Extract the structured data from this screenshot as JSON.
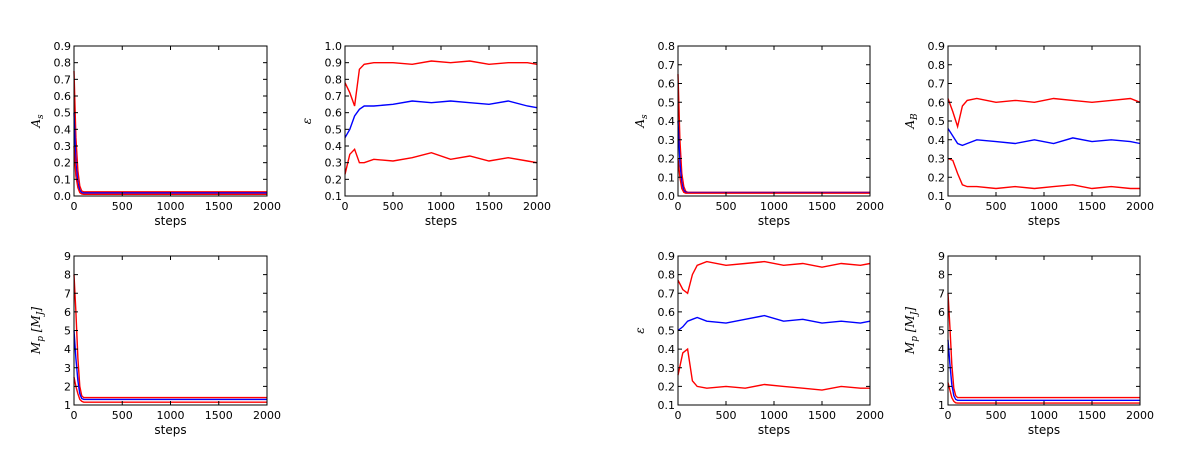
{
  "chart_data": [
    {
      "id": "a-As",
      "type": "line",
      "xlabel": "steps",
      "ylabel": "A_s",
      "xlim": [
        0,
        2000
      ],
      "ylim": [
        0,
        0.9
      ],
      "xticks": [
        "0",
        "500",
        "1000",
        "1500",
        "2000"
      ],
      "yticks": [
        "0.0",
        "0.1",
        "0.2",
        "0.3",
        "0.4",
        "0.5",
        "0.6",
        "0.7",
        "0.8",
        "0.9"
      ],
      "series": [
        {
          "color": "#ff0000",
          "x": [
            0,
            20,
            40,
            60,
            80,
            100,
            150,
            2000
          ],
          "y": [
            0.75,
            0.35,
            0.15,
            0.06,
            0.03,
            0.025,
            0.025,
            0.025
          ]
        },
        {
          "color": "#0000ff",
          "x": [
            0,
            20,
            40,
            60,
            80,
            100,
            150,
            2000
          ],
          "y": [
            0.5,
            0.2,
            0.08,
            0.035,
            0.02,
            0.018,
            0.018,
            0.018
          ]
        },
        {
          "color": "#ff0000",
          "x": [
            0,
            20,
            40,
            60,
            80,
            100,
            150,
            2000
          ],
          "y": [
            0.3,
            0.12,
            0.05,
            0.02,
            0.012,
            0.01,
            0.01,
            0.01
          ]
        }
      ]
    },
    {
      "id": "a-eps",
      "type": "line",
      "xlabel": "steps",
      "ylabel": "ε",
      "xlim": [
        0,
        2000
      ],
      "ylim": [
        0.1,
        1.0
      ],
      "xticks": [
        "0",
        "500",
        "1000",
        "1500",
        "2000"
      ],
      "yticks": [
        "0.1",
        "0.2",
        "0.3",
        "0.4",
        "0.5",
        "0.6",
        "0.7",
        "0.8",
        "0.9",
        "1.0"
      ],
      "series": [
        {
          "color": "#ff0000",
          "x": [
            0,
            50,
            100,
            150,
            200,
            300,
            500,
            700,
            900,
            1100,
            1300,
            1500,
            1700,
            1900,
            2000
          ],
          "y": [
            0.78,
            0.72,
            0.64,
            0.86,
            0.89,
            0.9,
            0.9,
            0.89,
            0.91,
            0.9,
            0.91,
            0.89,
            0.9,
            0.9,
            0.89
          ]
        },
        {
          "color": "#0000ff",
          "x": [
            0,
            50,
            100,
            150,
            200,
            300,
            500,
            700,
            900,
            1100,
            1300,
            1500,
            1700,
            1900,
            2000
          ],
          "y": [
            0.45,
            0.5,
            0.58,
            0.62,
            0.64,
            0.64,
            0.65,
            0.67,
            0.66,
            0.67,
            0.66,
            0.65,
            0.67,
            0.64,
            0.63
          ]
        },
        {
          "color": "#ff0000",
          "x": [
            0,
            50,
            100,
            150,
            200,
            300,
            500,
            700,
            900,
            1100,
            1300,
            1500,
            1700,
            1900,
            2000
          ],
          "y": [
            0.23,
            0.35,
            0.38,
            0.3,
            0.3,
            0.32,
            0.31,
            0.33,
            0.36,
            0.32,
            0.34,
            0.31,
            0.33,
            0.31,
            0.3
          ]
        }
      ]
    },
    {
      "id": "a-Mp",
      "type": "line",
      "xlabel": "steps",
      "ylabel": "M_p [M_J]",
      "xlim": [
        0,
        2000
      ],
      "ylim": [
        1,
        9
      ],
      "xticks": [
        "0",
        "500",
        "1000",
        "1500",
        "2000"
      ],
      "yticks": [
        "1",
        "2",
        "3",
        "4",
        "5",
        "6",
        "7",
        "8",
        "9"
      ],
      "series": [
        {
          "color": "#ff0000",
          "x": [
            0,
            20,
            40,
            60,
            80,
            100,
            150,
            2000
          ],
          "y": [
            8.0,
            6.0,
            3.5,
            2.0,
            1.5,
            1.4,
            1.4,
            1.4
          ]
        },
        {
          "color": "#0000ff",
          "x": [
            0,
            20,
            40,
            60,
            80,
            100,
            150,
            2000
          ],
          "y": [
            5.0,
            3.5,
            2.3,
            1.6,
            1.35,
            1.3,
            1.3,
            1.3
          ]
        },
        {
          "color": "#ff0000",
          "x": [
            0,
            20,
            40,
            60,
            80,
            100,
            150,
            2000
          ],
          "y": [
            2.5,
            2.0,
            1.6,
            1.3,
            1.2,
            1.15,
            1.15,
            1.15
          ]
        }
      ]
    },
    {
      "id": "b-As",
      "type": "line",
      "xlabel": "steps",
      "ylabel": "A_s",
      "xlim": [
        0,
        2000
      ],
      "ylim": [
        0,
        0.8
      ],
      "xticks": [
        "0",
        "500",
        "1000",
        "1500",
        "2000"
      ],
      "yticks": [
        "0.0",
        "0.1",
        "0.2",
        "0.3",
        "0.4",
        "0.5",
        "0.6",
        "0.7",
        "0.8"
      ],
      "series": [
        {
          "color": "#ff0000",
          "x": [
            0,
            20,
            40,
            60,
            80,
            100,
            150,
            2000
          ],
          "y": [
            0.65,
            0.3,
            0.12,
            0.05,
            0.025,
            0.02,
            0.02,
            0.02
          ]
        },
        {
          "color": "#0000ff",
          "x": [
            0,
            20,
            40,
            60,
            80,
            100,
            150,
            2000
          ],
          "y": [
            0.4,
            0.18,
            0.07,
            0.03,
            0.02,
            0.018,
            0.018,
            0.018
          ]
        },
        {
          "color": "#ff0000",
          "x": [
            0,
            20,
            40,
            60,
            80,
            100,
            150,
            2000
          ],
          "y": [
            0.2,
            0.1,
            0.04,
            0.02,
            0.015,
            0.015,
            0.015,
            0.015
          ]
        }
      ]
    },
    {
      "id": "b-AB",
      "type": "line",
      "xlabel": "steps",
      "ylabel": "A_B",
      "xlim": [
        0,
        2000
      ],
      "ylim": [
        0.1,
        0.9
      ],
      "xticks": [
        "0",
        "500",
        "1000",
        "1500",
        "2000"
      ],
      "yticks": [
        "0.1",
        "0.2",
        "0.3",
        "0.4",
        "0.5",
        "0.6",
        "0.7",
        "0.8",
        "0.9"
      ],
      "series": [
        {
          "color": "#ff0000",
          "x": [
            0,
            50,
            100,
            150,
            200,
            300,
            500,
            700,
            900,
            1100,
            1300,
            1500,
            1700,
            1900,
            2000
          ],
          "y": [
            0.62,
            0.55,
            0.47,
            0.58,
            0.61,
            0.62,
            0.6,
            0.61,
            0.6,
            0.62,
            0.61,
            0.6,
            0.61,
            0.62,
            0.6
          ]
        },
        {
          "color": "#0000ff",
          "x": [
            0,
            50,
            100,
            150,
            200,
            300,
            500,
            700,
            900,
            1100,
            1300,
            1500,
            1700,
            1900,
            2000
          ],
          "y": [
            0.46,
            0.42,
            0.38,
            0.37,
            0.38,
            0.4,
            0.39,
            0.38,
            0.4,
            0.38,
            0.41,
            0.39,
            0.4,
            0.39,
            0.38
          ]
        },
        {
          "color": "#ff0000",
          "x": [
            0,
            50,
            100,
            150,
            200,
            300,
            500,
            700,
            900,
            1100,
            1300,
            1500,
            1700,
            1900,
            2000
          ],
          "y": [
            0.3,
            0.29,
            0.22,
            0.16,
            0.15,
            0.15,
            0.14,
            0.15,
            0.14,
            0.15,
            0.16,
            0.14,
            0.15,
            0.14,
            0.14
          ]
        }
      ]
    },
    {
      "id": "b-eps",
      "type": "line",
      "xlabel": "steps",
      "ylabel": "ε",
      "xlim": [
        0,
        2000
      ],
      "ylim": [
        0.1,
        0.9
      ],
      "xticks": [
        "0",
        "500",
        "1000",
        "1500",
        "2000"
      ],
      "yticks": [
        "0.1",
        "0.2",
        "0.3",
        "0.4",
        "0.5",
        "0.6",
        "0.7",
        "0.8",
        "0.9"
      ],
      "series": [
        {
          "color": "#ff0000",
          "x": [
            0,
            50,
            100,
            150,
            200,
            300,
            500,
            700,
            900,
            1100,
            1300,
            1500,
            1700,
            1900,
            2000
          ],
          "y": [
            0.77,
            0.72,
            0.7,
            0.8,
            0.85,
            0.87,
            0.85,
            0.86,
            0.87,
            0.85,
            0.86,
            0.84,
            0.86,
            0.85,
            0.86
          ]
        },
        {
          "color": "#0000ff",
          "x": [
            0,
            50,
            100,
            150,
            200,
            300,
            500,
            700,
            900,
            1100,
            1300,
            1500,
            1700,
            1900,
            2000
          ],
          "y": [
            0.5,
            0.52,
            0.55,
            0.56,
            0.57,
            0.55,
            0.54,
            0.56,
            0.58,
            0.55,
            0.56,
            0.54,
            0.55,
            0.54,
            0.55
          ]
        },
        {
          "color": "#ff0000",
          "x": [
            0,
            50,
            100,
            150,
            200,
            300,
            500,
            700,
            900,
            1100,
            1300,
            1500,
            1700,
            1900,
            2000
          ],
          "y": [
            0.26,
            0.38,
            0.4,
            0.23,
            0.2,
            0.19,
            0.2,
            0.19,
            0.21,
            0.2,
            0.19,
            0.18,
            0.2,
            0.19,
            0.19
          ]
        }
      ]
    },
    {
      "id": "b-Mp",
      "type": "line",
      "xlabel": "steps",
      "ylabel": "M_p [M_J]",
      "xlim": [
        0,
        2000
      ],
      "ylim": [
        1,
        9
      ],
      "xticks": [
        "0",
        "500",
        "1000",
        "1500",
        "2000"
      ],
      "yticks": [
        "1",
        "2",
        "3",
        "4",
        "5",
        "6",
        "7",
        "8",
        "9"
      ],
      "series": [
        {
          "color": "#ff0000",
          "x": [
            0,
            20,
            40,
            60,
            80,
            100,
            150,
            2000
          ],
          "y": [
            7.0,
            5.2,
            3.2,
            1.9,
            1.5,
            1.4,
            1.4,
            1.4
          ]
        },
        {
          "color": "#0000ff",
          "x": [
            0,
            20,
            40,
            60,
            80,
            100,
            150,
            2000
          ],
          "y": [
            4.5,
            3.2,
            2.1,
            1.5,
            1.3,
            1.25,
            1.25,
            1.25
          ]
        },
        {
          "color": "#ff0000",
          "x": [
            0,
            20,
            40,
            60,
            80,
            100,
            150,
            2000
          ],
          "y": [
            2.2,
            1.8,
            1.4,
            1.2,
            1.12,
            1.1,
            1.1,
            1.1
          ]
        }
      ]
    }
  ]
}
